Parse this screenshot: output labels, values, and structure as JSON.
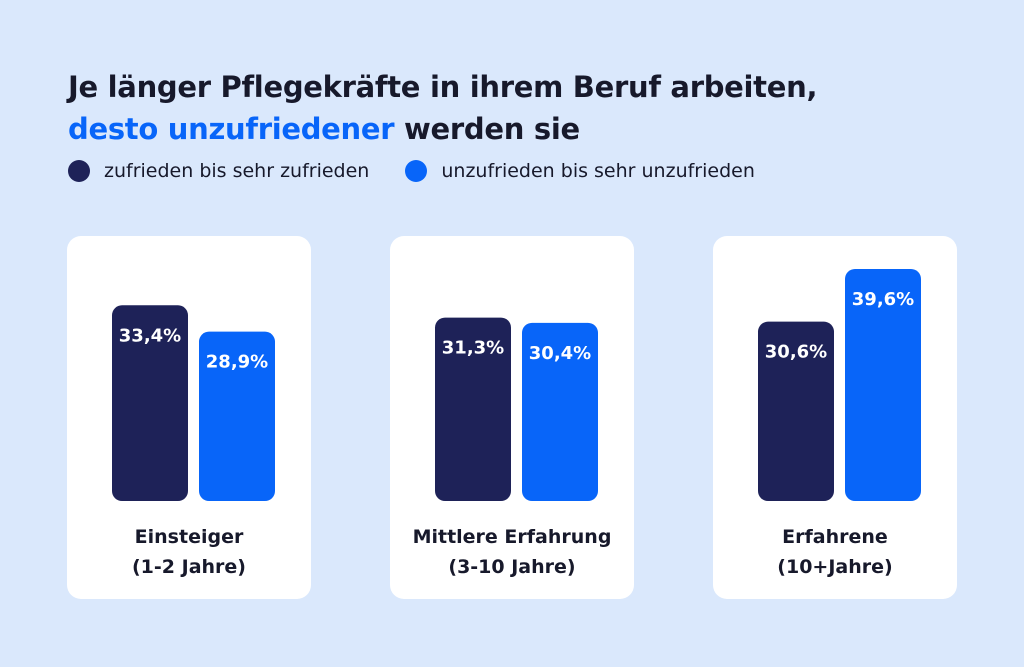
{
  "colors": {
    "background": "#dae8fc",
    "dark": "#1e2258",
    "accent": "#0865f9",
    "card": "#ffffff",
    "text": "#17192b"
  },
  "title": {
    "line1": "Je länger Pflegekräfte in ihrem Beruf arbeiten,",
    "line2_highlight": "desto unzufriedener",
    "line2_rest": " werden sie"
  },
  "chart_data": {
    "type": "bar",
    "title": "Je länger Pflegekräfte in ihrem Beruf arbeiten, desto unzufriedener werden sie",
    "categories": [
      "Einsteiger\n(1-2 Jahre)",
      "Mittlere Erfahrung\n(3-10 Jahre)",
      "Erfahrene\n(10+Jahre)"
    ],
    "category_lines": [
      [
        "Einsteiger",
        "(1-2 Jahre)"
      ],
      [
        "Mittlere Erfahrung",
        "(3-10 Jahre)"
      ],
      [
        "Erfahrene",
        "(10+Jahre)"
      ]
    ],
    "series": [
      {
        "name": "zufrieden bis sehr zufrieden",
        "values": [
          33.4,
          31.3,
          30.6
        ],
        "labels": [
          "33,4%",
          "31,3%",
          "30,6%"
        ],
        "color": "#1e2258"
      },
      {
        "name": "unzufrieden bis sehr unzufrieden",
        "values": [
          28.9,
          30.4,
          39.6
        ],
        "labels": [
          "28,9%",
          "30,4%",
          "39,6%"
        ],
        "color": "#0865f9"
      }
    ],
    "unit": "%",
    "legend": "top-left",
    "grid": false,
    "ylim": [
      0,
      42
    ]
  }
}
